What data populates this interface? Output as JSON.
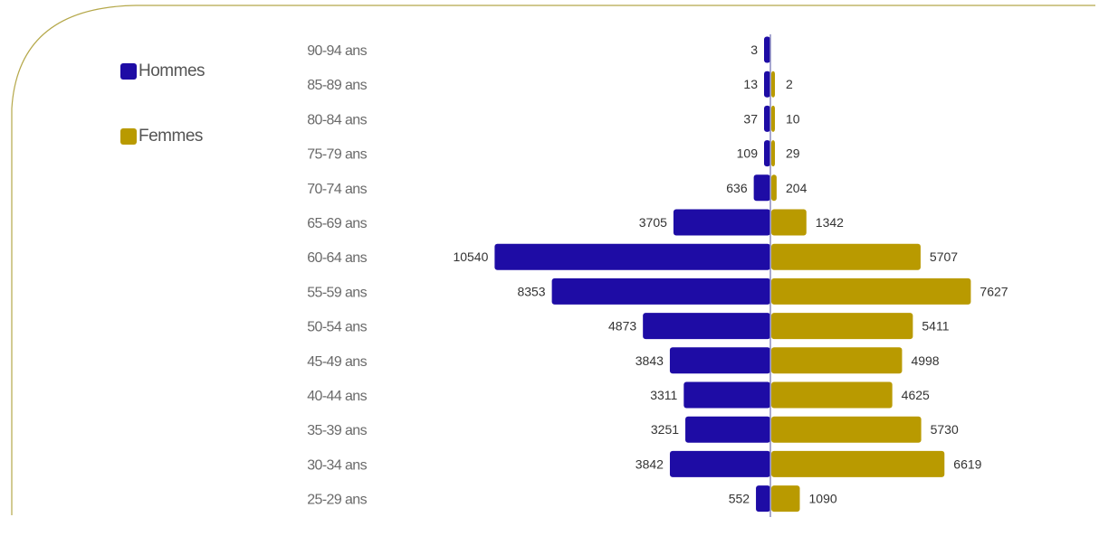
{
  "colors": {
    "men": "#1e0ca5",
    "women": "#b99a00",
    "frame": "#b5a84a",
    "axis_line": "#8a8ac0",
    "text": "#555555"
  },
  "legend": [
    {
      "label": "Hommes",
      "color": "#1e0ca5"
    },
    {
      "label": "Femmes",
      "color": "#b99a00"
    }
  ],
  "chart_data": {
    "type": "bar",
    "orientation": "horizontal-butterfly",
    "title": "",
    "xlabel": "",
    "ylabel": "",
    "categories": [
      "90-94 ans",
      "85-89 ans",
      "80-84 ans",
      "75-79 ans",
      "70-74 ans",
      "65-69 ans",
      "60-64 ans",
      "55-59 ans",
      "50-54 ans",
      "45-49 ans",
      "40-44 ans",
      "35-39 ans",
      "30-34 ans",
      "25-29 ans"
    ],
    "series": [
      {
        "name": "Hommes",
        "side": "left",
        "values": [
          3,
          13,
          37,
          109,
          636,
          3705,
          10540,
          8353,
          4873,
          3843,
          3311,
          3251,
          3842,
          552
        ]
      },
      {
        "name": "Femmes",
        "side": "right",
        "values": [
          null,
          2,
          10,
          29,
          204,
          1342,
          5707,
          7627,
          5411,
          4998,
          4625,
          5730,
          6619,
          1090
        ]
      }
    ],
    "grid": false,
    "legend_position": "top-left"
  }
}
